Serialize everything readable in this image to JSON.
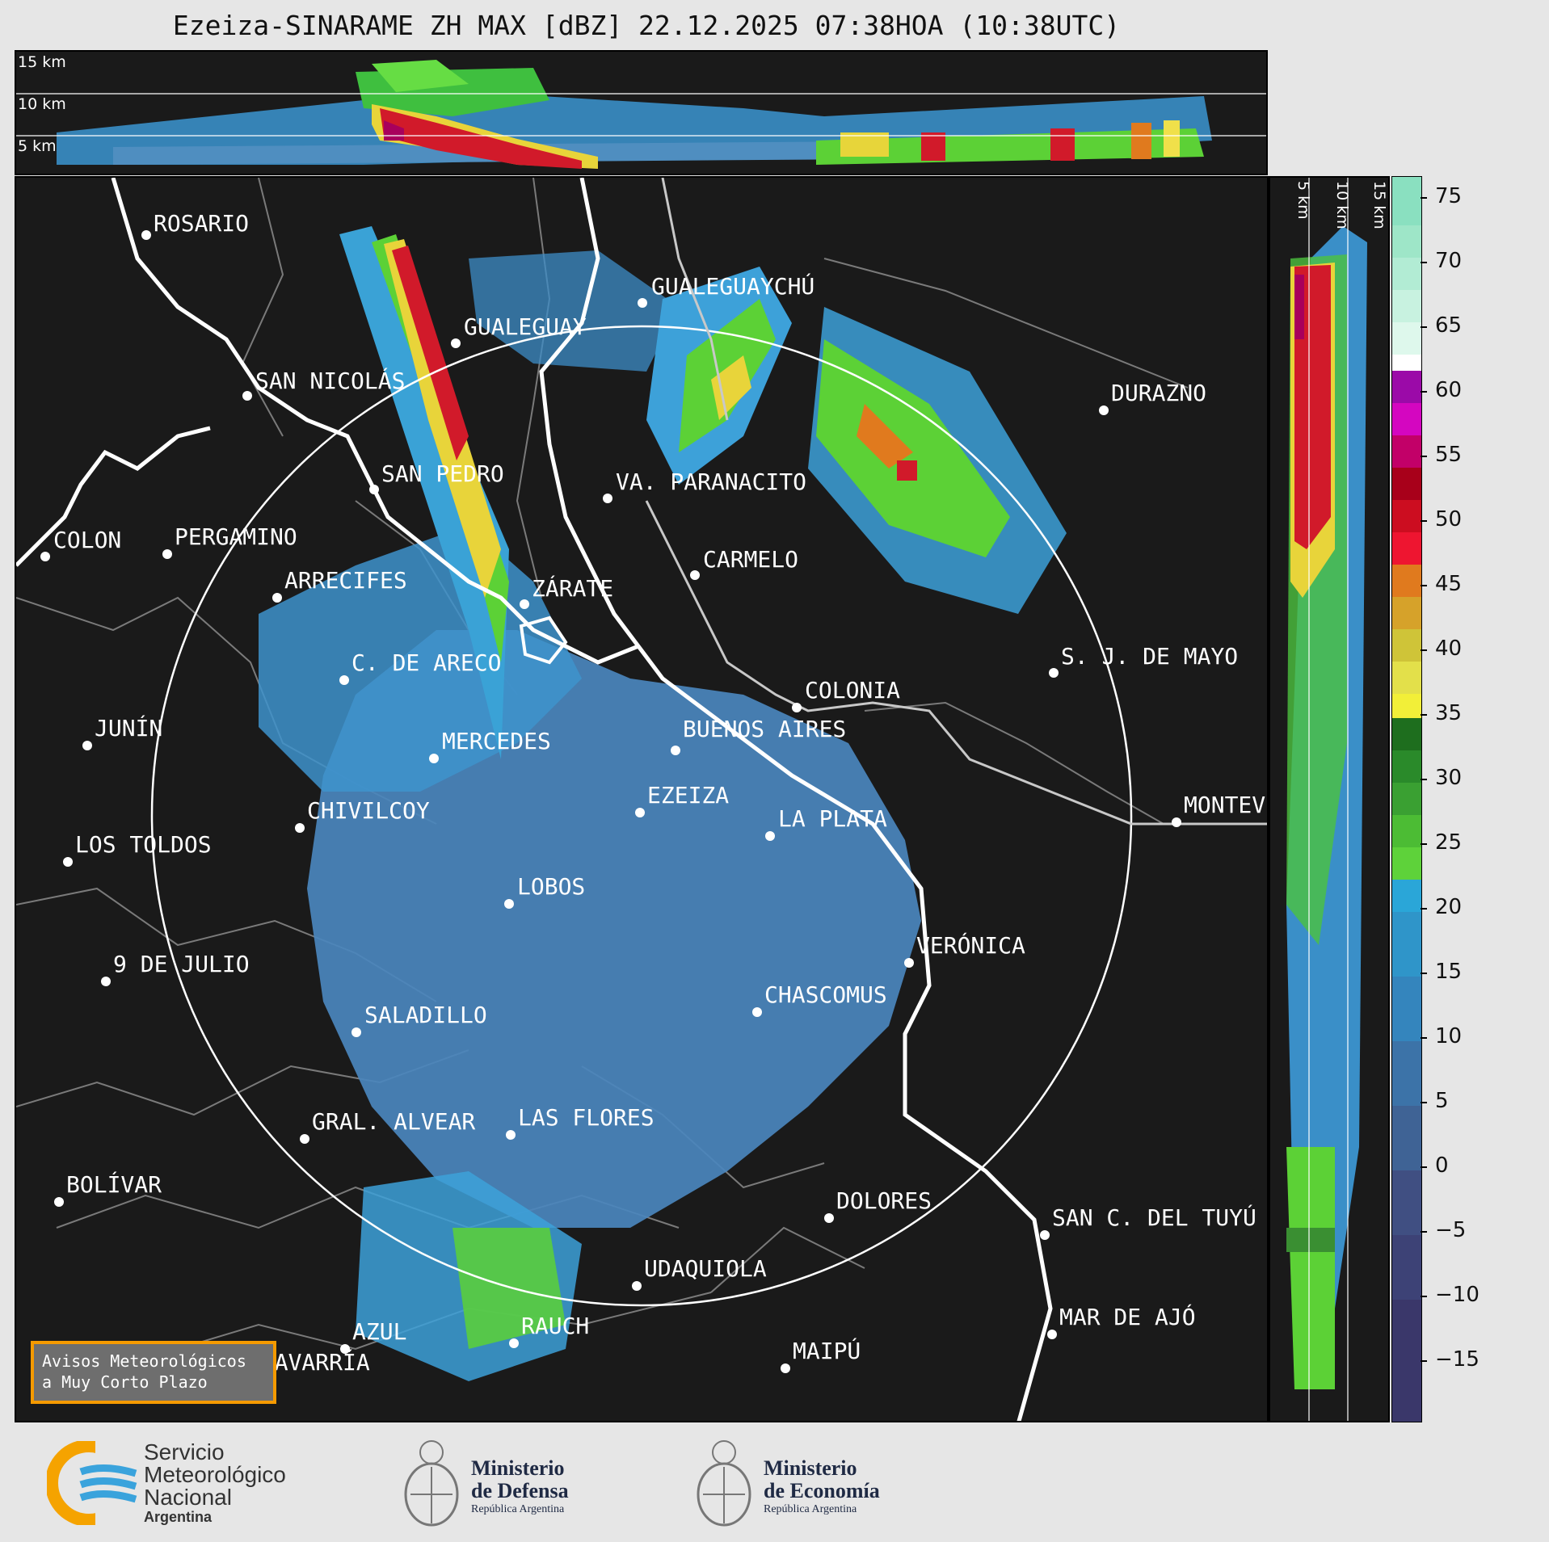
{
  "title": "Ezeiza-SINARAME ZH MAX [dBZ] 22.12.2025 07:38HOA (10:38UTC)",
  "top_panel": {
    "height_labels": [
      "15 km",
      "10 km",
      "5 km"
    ]
  },
  "side_panel": {
    "height_labels": [
      "5 km",
      "10 km",
      "15 km"
    ]
  },
  "colorbar": {
    "ticks": [
      "75",
      "70",
      "65",
      "60",
      "55",
      "50",
      "45",
      "40",
      "35",
      "30",
      "25",
      "20",
      "15",
      "10",
      "5",
      "0",
      "−5",
      "−10",
      "−15"
    ]
  },
  "cities": [
    {
      "name": "ROSARIO"
    },
    {
      "name": "GUALEGUAYCHÚ"
    },
    {
      "name": "GUALEGUAY"
    },
    {
      "name": "SAN NICOLÁS"
    },
    {
      "name": "DURAZNO"
    },
    {
      "name": "SAN PEDRO"
    },
    {
      "name": "VA. PARANACITO"
    },
    {
      "name": "COLON"
    },
    {
      "name": "PERGAMINO"
    },
    {
      "name": "CARMELO"
    },
    {
      "name": "ARRECIFES"
    },
    {
      "name": "ZÁRATE"
    },
    {
      "name": "S. J. DE MAYO"
    },
    {
      "name": "C. DE ARECO"
    },
    {
      "name": "COLONIA"
    },
    {
      "name": "JUNÍN"
    },
    {
      "name": "BUENOS AIRES"
    },
    {
      "name": "MERCEDES"
    },
    {
      "name": "EZEIZA"
    },
    {
      "name": "MONTEVIDEO"
    },
    {
      "name": "CHIVILCOY"
    },
    {
      "name": "LA PLATA"
    },
    {
      "name": "LOS TOLDOS"
    },
    {
      "name": "LOBOS"
    },
    {
      "name": "VERÓNICA"
    },
    {
      "name": "9 DE JULIO"
    },
    {
      "name": "CHASCOMUS"
    },
    {
      "name": "SALADILLO"
    },
    {
      "name": "GRAL. ALVEAR"
    },
    {
      "name": "LAS FLORES"
    },
    {
      "name": "BOLÍVAR"
    },
    {
      "name": "DOLORES"
    },
    {
      "name": "SAN C. DEL TUYÚ"
    },
    {
      "name": "UDAQUIOLA"
    },
    {
      "name": "MAR DE AJÓ"
    },
    {
      "name": "AZUL"
    },
    {
      "name": "RAUCH"
    },
    {
      "name": "OLAVARRÍA"
    },
    {
      "name": "MAIPÚ"
    }
  ],
  "avisos": {
    "line1": "Avisos Meteorológicos",
    "line2": "a Muy Corto Plazo"
  },
  "logos": {
    "smn": {
      "line1": "Servicio",
      "line2": "Meteorológico",
      "line3": "Nacional",
      "line4": "Argentina"
    },
    "defensa": {
      "line1": "Ministerio",
      "line2": "de Defensa",
      "line3": "República Argentina"
    },
    "economia": {
      "line1": "Ministerio",
      "line2": "de Economía",
      "line3": "República Argentina"
    }
  }
}
